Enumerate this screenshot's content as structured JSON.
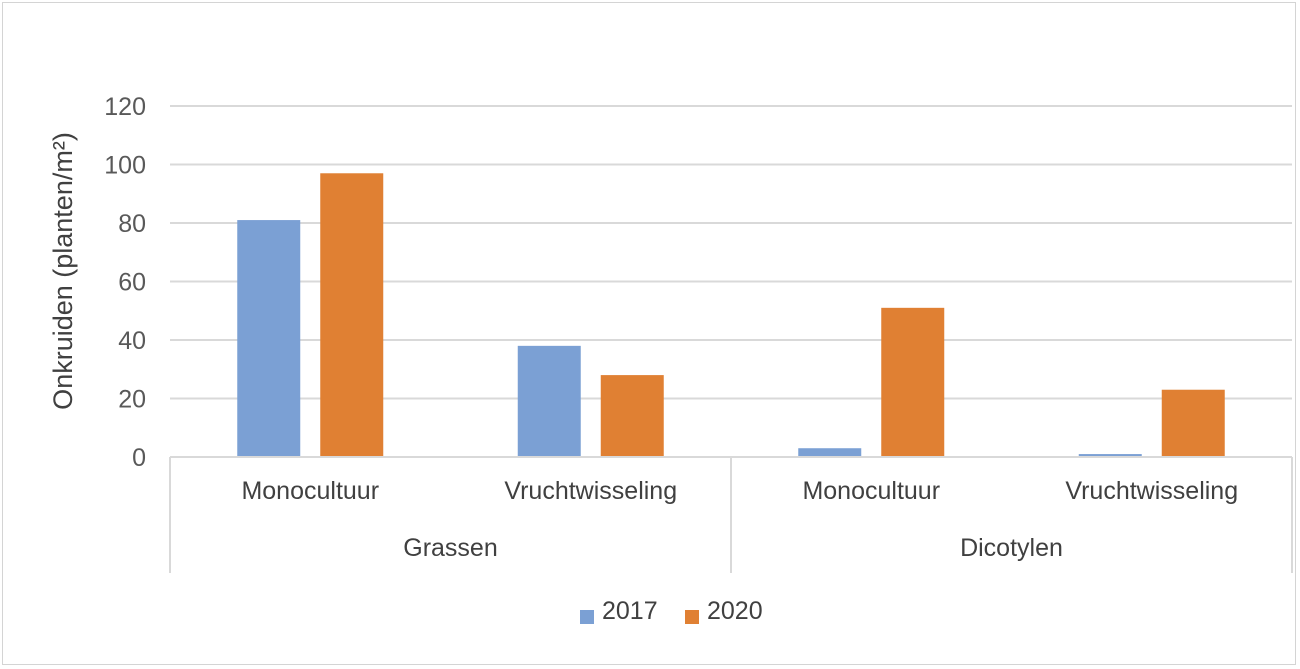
{
  "chart_data": {
    "type": "bar",
    "ylabel": "Onkruiden (planten/m²)",
    "ylim": [
      0,
      120
    ],
    "yticks": [
      0,
      20,
      40,
      60,
      80,
      100,
      120
    ],
    "grid": true,
    "legend_position": "bottom",
    "groups": [
      "Grassen",
      "Dicotylen"
    ],
    "categories": [
      "Monocultuur",
      "Vruchtwisseling",
      "Monocultuur",
      "Vruchtwisseling"
    ],
    "category_groups": [
      0,
      0,
      1,
      1
    ],
    "series": [
      {
        "name": "2017",
        "color": "#7ba0d4",
        "values": [
          81,
          38,
          3,
          1
        ]
      },
      {
        "name": "2020",
        "color": "#e08033",
        "values": [
          97,
          28,
          51,
          23
        ]
      }
    ]
  }
}
